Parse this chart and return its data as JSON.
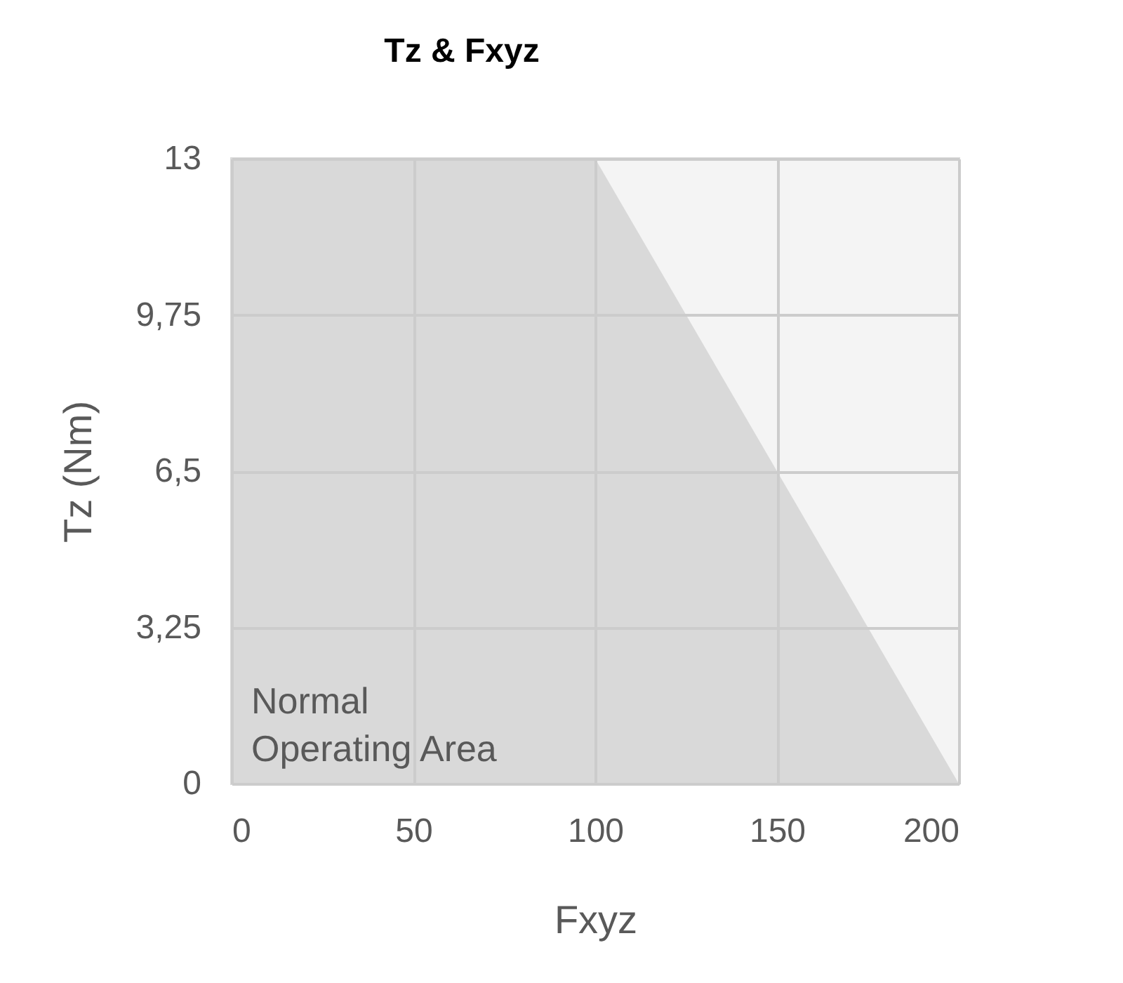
{
  "chart_data": {
    "type": "area",
    "title": "Tz & Fxyz",
    "xlabel": "Fxyz",
    "ylabel": "Tz (Nm)",
    "series": [
      {
        "x": [
          100,
          200
        ],
        "values": [
          13,
          13
        ],
        "color": "#f4f4f4"
      },
      {
        "x": [
          0,
          100,
          200
        ],
        "values": [
          13,
          13,
          0
        ],
        "color": "#d9d9d9"
      }
    ],
    "xlim": [
      0,
      200
    ],
    "xticks": [
      0,
      50,
      100,
      150,
      200
    ],
    "ylim": [
      0,
      13
    ],
    "yticks": [
      0,
      {
        "value": 3.25,
        "label": "3,25"
      },
      {
        "value": 6.5,
        "label": "6,5"
      },
      {
        "value": 9.75,
        "label": "9,75"
      },
      13
    ],
    "grid": true,
    "annotations": [
      "Normal\nOperating Area"
    ]
  }
}
